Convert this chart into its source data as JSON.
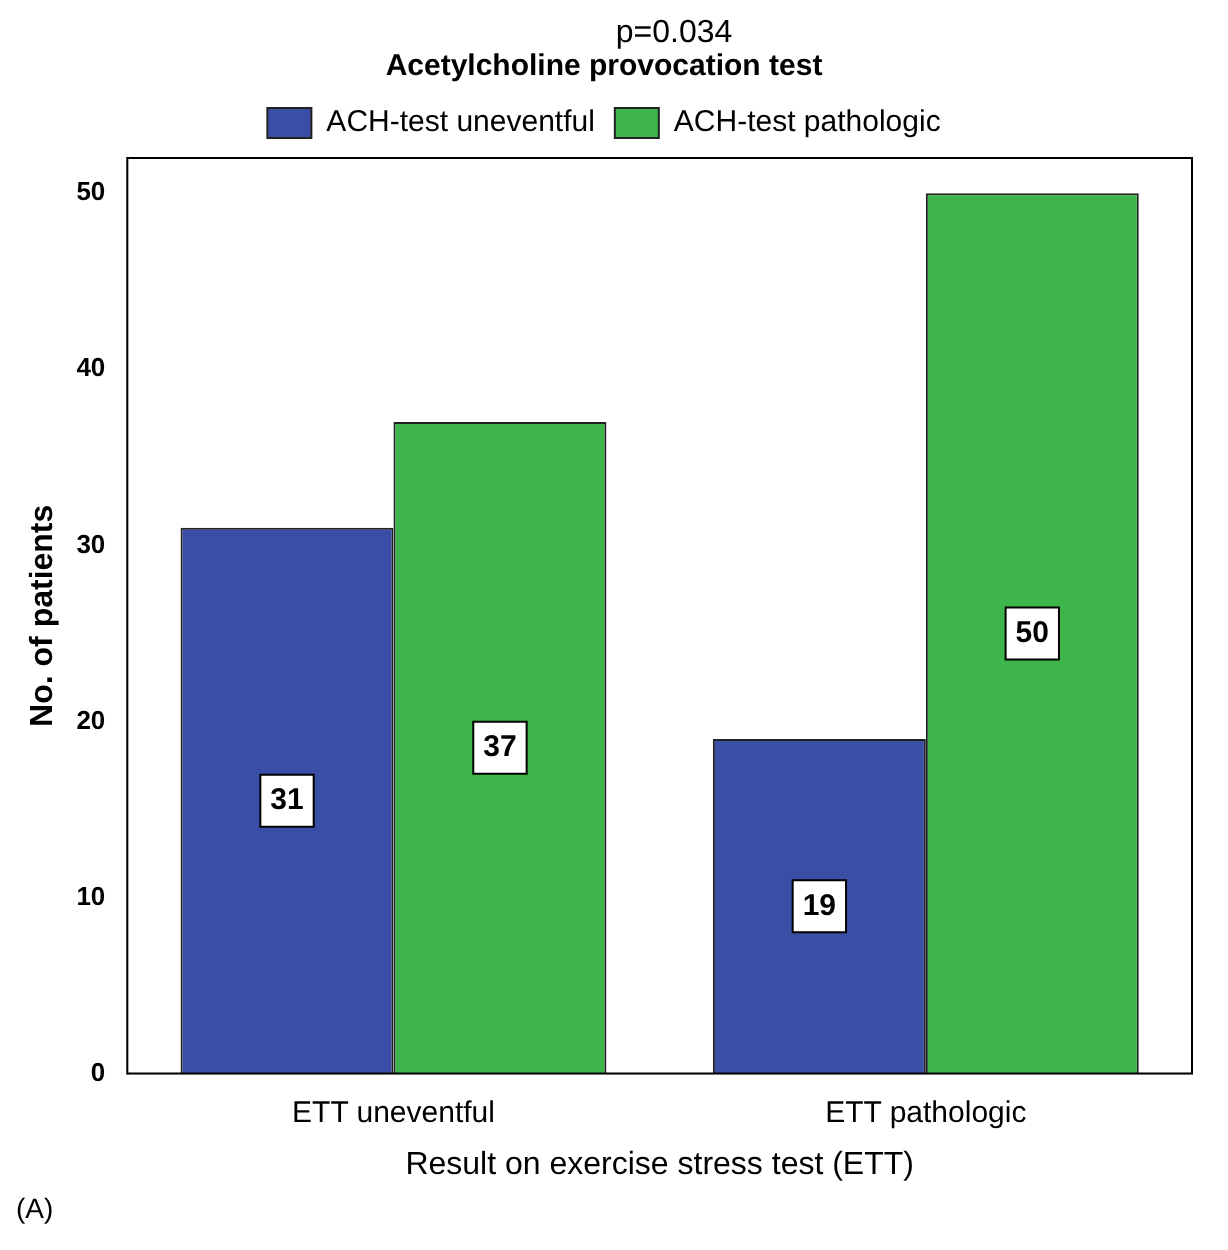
{
  "chart_data": {
    "type": "bar",
    "xlabel": "Result on exercise stress test (ETT)",
    "ylabel": "No. of patients",
    "legend_title": "Acetylcholine provocation test",
    "categories": [
      "ETT uneventful",
      "ETT pathologic"
    ],
    "series": [
      {
        "name": "ACH-test uneventful",
        "color": "#3b4ea6",
        "values": [
          31,
          19
        ]
      },
      {
        "name": "ACH-test pathologic",
        "color": "#3db54a",
        "values": [
          37,
          50
        ]
      }
    ],
    "ylim": [
      0,
      52
    ],
    "yticks": [
      0,
      10,
      20,
      30,
      40,
      50
    ],
    "grid": false,
    "legend": "top",
    "data_labels": true,
    "annotations": [
      "p=0.034",
      "(A)"
    ]
  }
}
